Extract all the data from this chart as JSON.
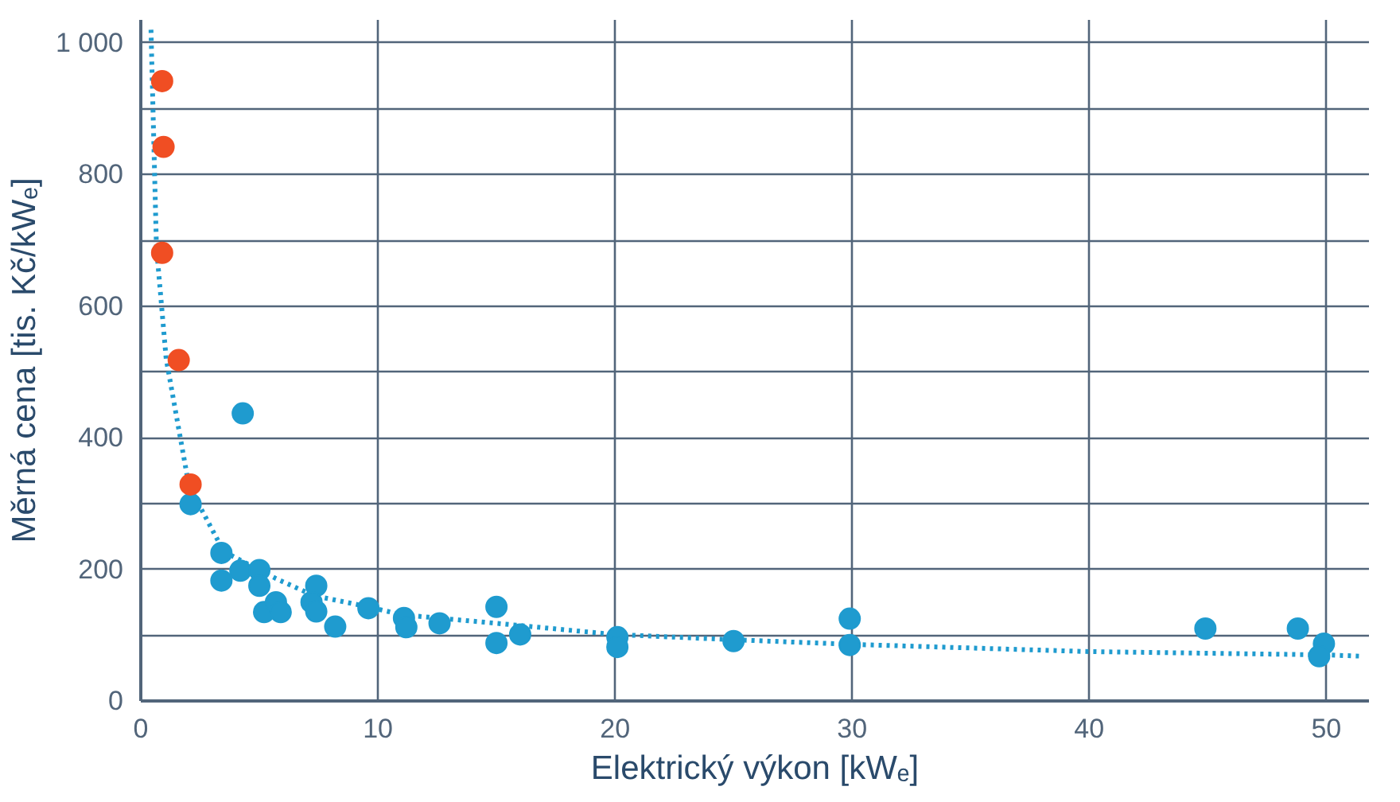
{
  "chart_data": {
    "type": "scatter",
    "xlabel": "Elektrický výkon [kWₑ]",
    "ylabel": "Měrná cena [tis. Kč/kWₑ]",
    "xlim": [
      0,
      51.8
    ],
    "ylim": [
      0,
      1035
    ],
    "xticks": [
      0,
      10,
      20,
      30,
      40,
      50
    ],
    "yticks": [
      0,
      {
        "value": 100,
        "label": null
      },
      200,
      {
        "value": 300,
        "label": null
      },
      400,
      {
        "value": 500,
        "label": null
      },
      600,
      {
        "value": 700,
        "label": null
      },
      800,
      {
        "value": 900,
        "label": null
      },
      {
        "value": 1000,
        "label": "1 000"
      }
    ],
    "grid": true,
    "marker": "circle",
    "series": [
      {
        "color": "#1f9bcf",
        "type": "line",
        "line_style": "dotted",
        "marker": "none",
        "x": [
          0.43,
          0.66,
          1.07,
          2.03,
          3.5,
          5.7,
          7.3,
          9.6,
          11,
          15,
          20,
          25,
          30,
          40,
          50,
          51.5
        ],
        "values": [
          1020,
          690,
          520,
          327,
          227,
          186,
          160,
          143,
          131,
          118,
          101,
          93,
          86,
          75,
          70,
          68
        ]
      },
      {
        "color": "#1f9bcf",
        "x": [
          2.1,
          3.4,
          3.4,
          4.3,
          4.2,
          5.0,
          5.0,
          5.2,
          5.7,
          5.9,
          7.4,
          7.2,
          7.4,
          8.2,
          9.6,
          11.1,
          11.2,
          12.6,
          15.0,
          15.0,
          16.0,
          20.1,
          20.1,
          25.0,
          29.9,
          29.9,
          44.9,
          48.8,
          49.9,
          49.7
        ],
        "values": [
          299,
          225,
          183,
          437,
          198,
          199,
          175,
          135,
          150,
          135,
          175,
          150,
          136,
          113,
          141,
          126,
          112,
          118,
          143,
          88,
          101,
          97,
          82,
          91,
          125,
          85,
          110,
          110,
          87,
          68
        ]
      },
      {
        "color": "#f04e23",
        "x": [
          0.9,
          0.96,
          0.9,
          1.6,
          2.1
        ],
        "values": [
          942,
          842,
          681,
          518,
          329
        ]
      }
    ]
  }
}
